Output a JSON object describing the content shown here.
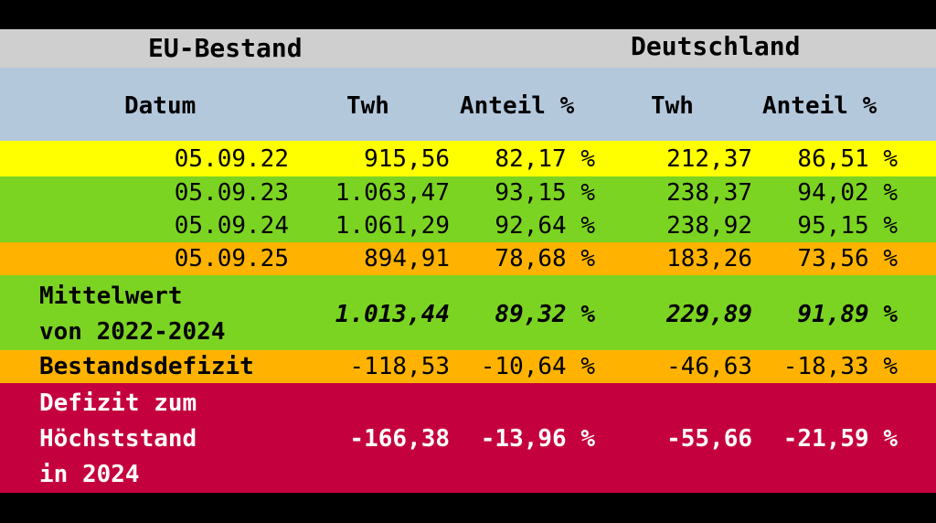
{
  "header": {
    "eu_title": "EU-Bestand",
    "de_title": "Deutschland"
  },
  "columns": {
    "date": "Datum",
    "twh": "Twh",
    "share": "Anteil %",
    "twh_de": "Twh",
    "share_de": "Anteil %"
  },
  "colors": {
    "header_bg": "#cfcfcf",
    "colhead_bg": "#b4c8dc",
    "yellow": "#ffff00",
    "green": "#7cd422",
    "orange": "#ffb300",
    "red": "#c5003e"
  },
  "chart_data": {
    "type": "table",
    "rows": [
      {
        "label": "05.09.22",
        "eu_twh": "915,56",
        "eu_pct": "82,17 %",
        "de_twh": "212,37",
        "de_pct": "86,51 %"
      },
      {
        "label": "05.09.23",
        "eu_twh": "1.063,47",
        "eu_pct": "93,15 %",
        "de_twh": "238,37",
        "de_pct": "94,02 %"
      },
      {
        "label": "05.09.24",
        "eu_twh": "1.061,29",
        "eu_pct": "92,64 %",
        "de_twh": "238,92",
        "de_pct": "95,15 %"
      },
      {
        "label": "05.09.25",
        "eu_twh": "894,91",
        "eu_pct": "78,68 %",
        "de_twh": "183,26",
        "de_pct": "73,56 %"
      }
    ],
    "mean": {
      "label_line1": "Mittelwert",
      "label_line2": "von 2022-2024",
      "eu_twh": "1.013,44",
      "eu_pct": "89,32 %",
      "de_twh": "229,89",
      "de_pct": "91,89 %"
    },
    "deficit": {
      "label": "Bestandsdefizit",
      "eu_twh": "-118,53",
      "eu_pct": "-10,64 %",
      "de_twh": "-46,63",
      "de_pct": "-18,33 %"
    },
    "peak_deficit": {
      "label_line1": "Defizit zum",
      "label_line2": "Höchststand",
      "label_line3": "in 2024",
      "eu_twh": "-166,38",
      "eu_pct": "-13,96 %",
      "de_twh": "-55,66",
      "de_pct": "-21,59 %"
    }
  }
}
